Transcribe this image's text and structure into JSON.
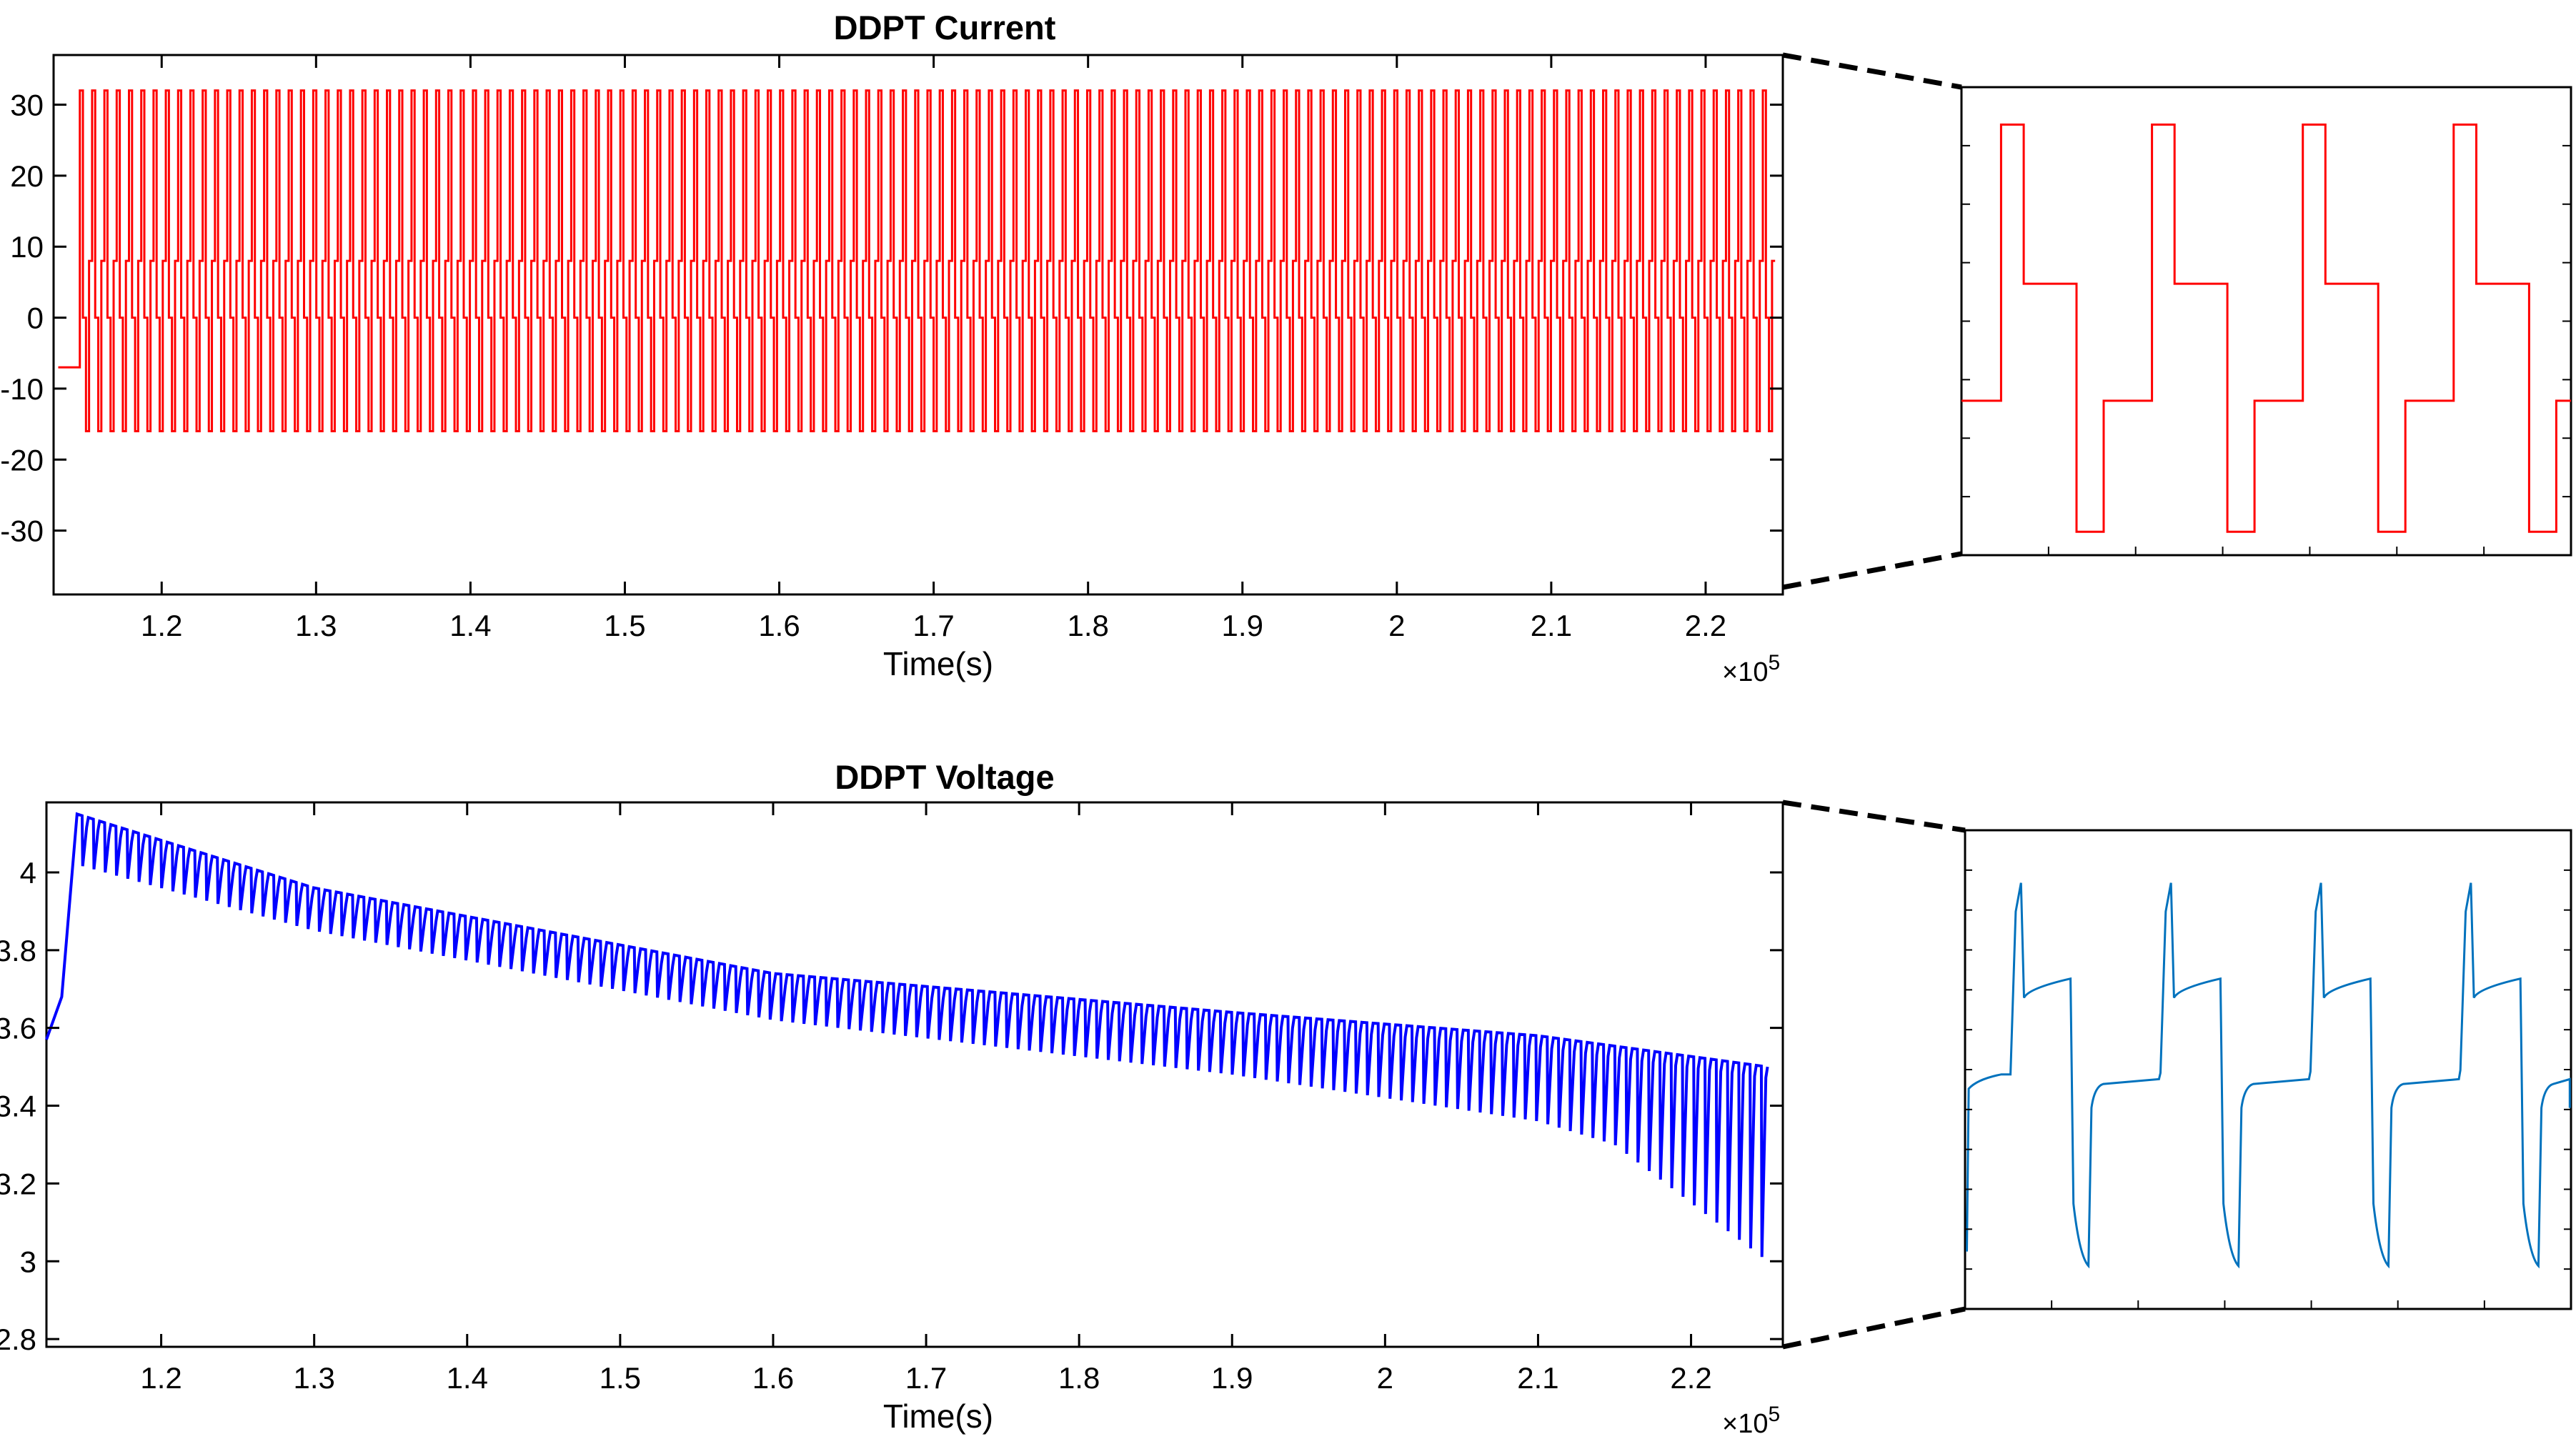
{
  "chart_data": [
    {
      "type": "line",
      "title": "DDPT Current",
      "xlabel": "Time(s)",
      "ylabel": "",
      "x_multiplier": "×10",
      "x_multiplier_exp": "5",
      "xlim": [
        1.13,
        2.25
      ],
      "ylim": [
        -39,
        37
      ],
      "xticks": [
        1.2,
        1.3,
        1.4,
        1.5,
        1.6,
        1.7,
        1.8,
        1.9,
        2.0,
        2.1,
        2.2
      ],
      "xtick_labels": [
        "1.2",
        "1.3",
        "1.4",
        "1.5",
        "1.6",
        "1.7",
        "1.8",
        "1.9",
        "2",
        "2.1",
        "2.2"
      ],
      "yticks": [
        30,
        20,
        10,
        0,
        -10,
        -20,
        -30
      ],
      "ytick_labels": [
        "30",
        "20",
        "10",
        "0",
        "-10",
        "-20",
        "-30"
      ],
      "grid": false,
      "color": "#ff0000",
      "series": [
        {
          "name": "DDPT Current",
          "waveform": {
            "start": 1.147,
            "end": 2.245,
            "cycles": 138,
            "initial_level": -7,
            "levels": [
              32,
              0,
              -16,
              8
            ]
          }
        }
      ]
    },
    {
      "type": "line",
      "title": "DDPT Voltage",
      "xlabel": "Time(s)",
      "ylabel": "",
      "x_multiplier": "×10",
      "x_multiplier_exp": "5",
      "xlim": [
        1.125,
        2.26
      ],
      "ylim": [
        2.78,
        4.18
      ],
      "xticks": [
        1.2,
        1.3,
        1.4,
        1.5,
        1.6,
        1.7,
        1.8,
        1.9,
        2.0,
        2.1,
        2.2
      ],
      "xtick_labels": [
        "1.2",
        "1.3",
        "1.4",
        "1.5",
        "1.6",
        "1.7",
        "1.8",
        "1.9",
        "2",
        "2.1",
        "2.2"
      ],
      "yticks": [
        4.0,
        3.8,
        3.6,
        3.4,
        3.2,
        3.0,
        2.8
      ],
      "ytick_labels": [
        "4",
        "3.8",
        "3.6",
        "3.4",
        "3.2",
        "3",
        "2.8"
      ],
      "grid": false,
      "color": "#0000ff",
      "series": [
        {
          "name": "DDPT Voltage",
          "envelope": {
            "start": 1.145,
            "end": 2.25,
            "cycles": 150,
            "rise_from": [
              1.125,
              3.57
            ],
            "upper": [
              [
                1.145,
                4.15
              ],
              [
                1.3,
                3.96
              ],
              [
                1.6,
                3.74
              ],
              [
                1.9,
                3.64
              ],
              [
                2.1,
                3.58
              ],
              [
                2.25,
                3.5
              ]
            ],
            "lower": [
              [
                1.145,
                4.02
              ],
              [
                1.3,
                3.85
              ],
              [
                1.6,
                3.62
              ],
              [
                1.9,
                3.48
              ],
              [
                2.1,
                3.36
              ],
              [
                2.15,
                3.3
              ],
              [
                2.2,
                3.15
              ],
              [
                2.25,
                3.0
              ]
            ]
          }
        }
      ]
    }
  ],
  "zoom_insets": [
    {
      "name": "current-zoom",
      "color": "#ff0000",
      "period_pattern": [
        0.72,
        0.72,
        0.28,
        0.28
      ],
      "cycles": 4,
      "levels_y": [
        0.08,
        0.42,
        0.95,
        0.67
      ]
    },
    {
      "name": "voltage-zoom",
      "color": "#0072bd",
      "cycles": 4
    }
  ]
}
